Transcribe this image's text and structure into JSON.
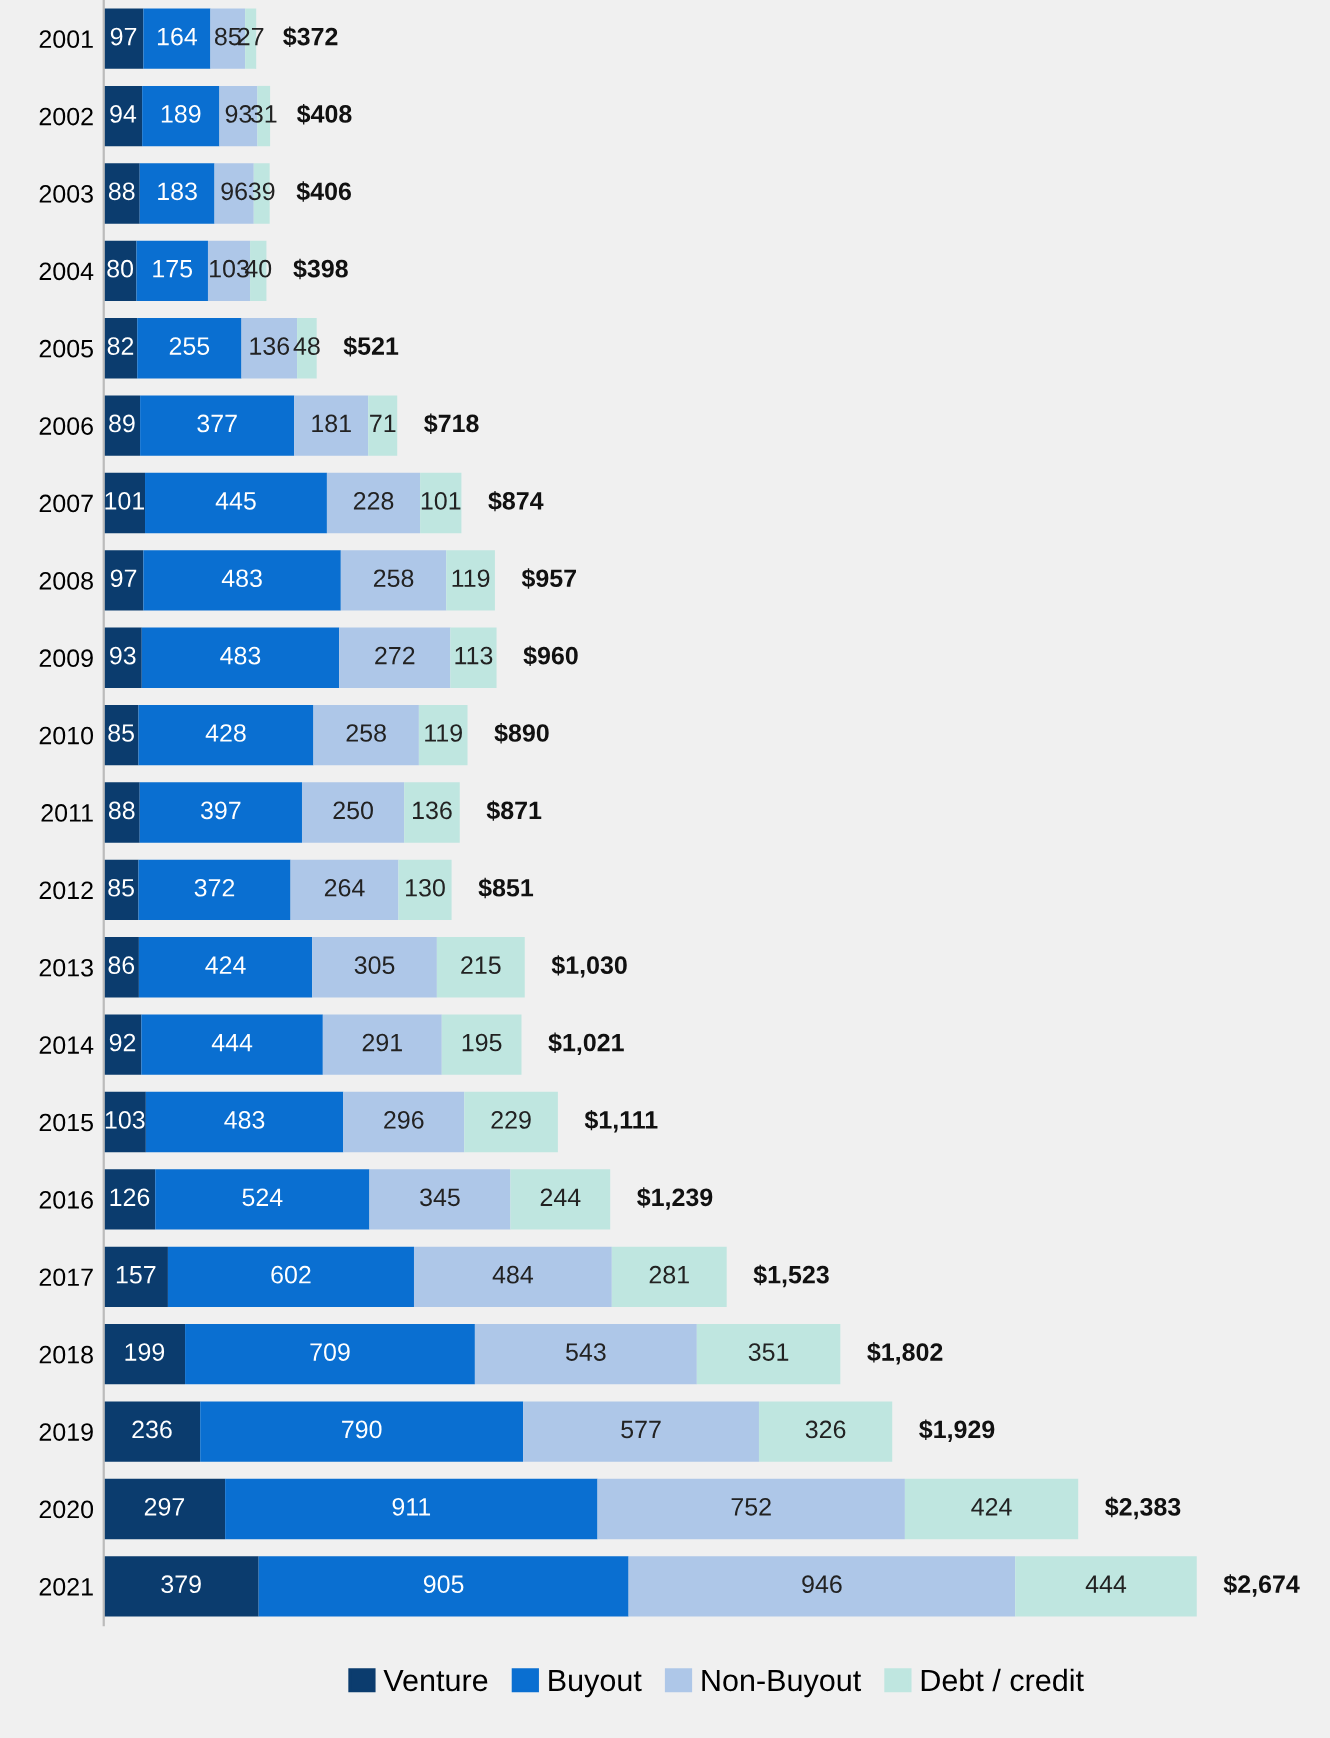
{
  "chart_data": {
    "type": "bar",
    "orientation": "horizontal",
    "stacked": true,
    "data_labels": true,
    "legend": "bottom",
    "grid": false,
    "tick_labels": "y",
    "xlim": [
      0,
      3000
    ],
    "categories": [
      "2001",
      "2002",
      "2003",
      "2004",
      "2005",
      "2006",
      "2007",
      "2008",
      "2009",
      "2010",
      "2011",
      "2012",
      "2013",
      "2014",
      "2015",
      "2016",
      "2017",
      "2018",
      "2019",
      "2020",
      "2021"
    ],
    "series": [
      {
        "name": "Venture",
        "color": "#0b3c6e",
        "values": [
          97,
          94,
          88,
          80,
          82,
          89,
          101,
          97,
          93,
          85,
          88,
          85,
          86,
          92,
          103,
          126,
          157,
          199,
          236,
          297,
          379
        ]
      },
      {
        "name": "Buyout",
        "color": "#0a6fd1",
        "values": [
          164,
          189,
          183,
          175,
          255,
          377,
          445,
          483,
          483,
          428,
          397,
          372,
          424,
          444,
          483,
          524,
          602,
          709,
          790,
          911,
          905
        ]
      },
      {
        "name": "Non-Buyout",
        "color": "#aec7e8",
        "values": [
          85,
          93,
          96,
          103,
          136,
          181,
          228,
          258,
          272,
          258,
          250,
          264,
          305,
          291,
          296,
          345,
          484,
          543,
          577,
          752,
          946
        ]
      },
      {
        "name": "Debt / credit",
        "color": "#bfe6e0",
        "values": [
          27,
          31,
          39,
          40,
          48,
          71,
          101,
          119,
          113,
          119,
          136,
          130,
          215,
          195,
          229,
          244,
          281,
          351,
          326,
          424,
          444
        ]
      }
    ],
    "totals": [
      "$372",
      "$408",
      "$406",
      "$398",
      "$521",
      "$718",
      "$874",
      "$957",
      "$960",
      "$890",
      "$871",
      "$851",
      "$1,030",
      "$1,021",
      "$1,111",
      "$1,239",
      "$1,523",
      "$1,802",
      "$1,929",
      "$2,383",
      "$2,674"
    ]
  }
}
